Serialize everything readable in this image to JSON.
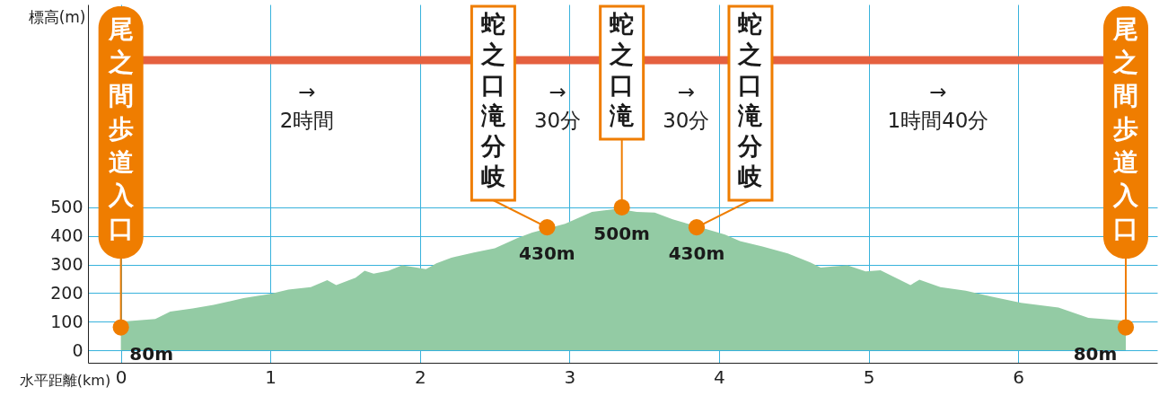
{
  "chart_data": {
    "type": "area",
    "xlabel": "水平距離(km)",
    "ylabel": "標高(m)",
    "xlim": [
      -0.22,
      6.93
    ],
    "ylim": [
      -44,
      1210
    ],
    "xticks": [
      0,
      1,
      2,
      3,
      4,
      5,
      6
    ],
    "yticks": [
      0,
      100,
      200,
      300,
      400,
      500
    ],
    "grid": true,
    "series": [
      {
        "color": "#93cba4",
        "x": [
          0,
          0.23,
          0.33,
          0.48,
          0.62,
          0.82,
          1.0,
          1.12,
          1.27,
          1.38,
          1.44,
          1.57,
          1.63,
          1.69,
          1.79,
          1.88,
          1.96,
          2.04,
          2.11,
          2.21,
          2.36,
          2.5,
          2.65,
          2.75,
          2.97,
          3.15,
          3.32,
          3.45,
          3.57,
          3.69,
          4.04,
          4.14,
          4.29,
          4.46,
          4.61,
          4.68,
          4.76,
          4.86,
          4.98,
          5.08,
          5.28,
          5.34,
          5.48,
          5.65,
          5.82,
          6.02,
          6.27,
          6.47,
          6.72
        ],
        "values": [
          100,
          109,
          135,
          146,
          159,
          182,
          197,
          212,
          221,
          245,
          228,
          254,
          278,
          268,
          278,
          297,
          291,
          284,
          304,
          324,
          342,
          357,
          392,
          412,
          442,
          484,
          495,
          484,
          482,
          458,
          405,
          382,
          363,
          339,
          307,
          289,
          293,
          297,
          276,
          280,
          228,
          247,
          221,
          208,
          188,
          166,
          149,
          113,
          103
        ]
      },
      {
        "type": "scatter",
        "marker": "circle",
        "color": "#ef7d00",
        "x": [
          0,
          2.85,
          3.35,
          3.85,
          6.72
        ],
        "values": [
          80,
          430,
          500,
          430,
          80
        ],
        "value_labels": [
          "80m",
          "430m",
          "500m",
          "430m",
          "80m"
        ]
      }
    ],
    "ref_lines": [
      {
        "axis": "y",
        "value": 1015,
        "color": "#e5603f"
      }
    ],
    "annotations": [
      {
        "text": "尾之間歩道入口",
        "x": 0,
        "y": 80
      },
      {
        "text": "蛇之口滝分岐",
        "x": 2.85,
        "y": 430
      },
      {
        "text": "蛇之口滝",
        "x": 3.35,
        "y": 500
      },
      {
        "text": "蛇之口滝分岐",
        "x": 3.85,
        "y": 430
      },
      {
        "text": "尾之間歩道入口",
        "x": 6.72,
        "y": 80
      },
      "→\n2時間",
      "→\n30分",
      "→\n30分",
      "→\n1時間40分"
    ]
  }
}
